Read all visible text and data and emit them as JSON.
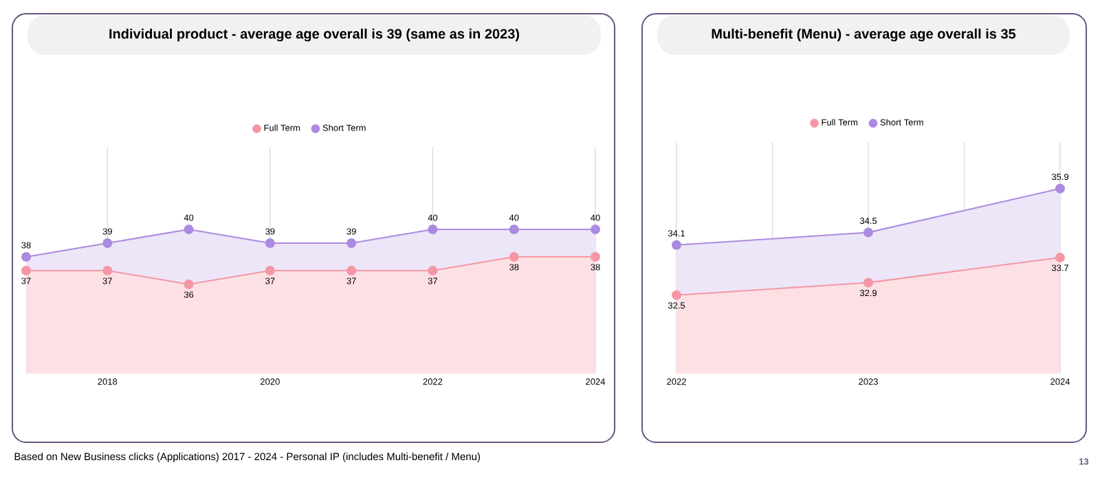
{
  "chart_data": [
    {
      "type": "area",
      "title": "Individual product - average age overall is 39 (same as in 2023)",
      "x": [
        2017,
        2018,
        2019,
        2020,
        2021,
        2022,
        2023,
        2024
      ],
      "series": [
        {
          "name": "Full Term",
          "color": "#f497a4",
          "values": [
            37,
            37,
            36,
            37,
            37,
            37,
            38,
            38
          ]
        },
        {
          "name": "Short Term",
          "color": "#ab8ae0",
          "values": [
            38,
            39,
            40,
            39,
            39,
            40,
            40,
            40
          ]
        }
      ],
      "xlim": [
        2017,
        2024
      ],
      "xticks": [
        2018,
        2020,
        2022,
        2024
      ],
      "ylim": [
        29.5,
        46
      ],
      "tick_labels": "x",
      "grid": "x",
      "legend": "top",
      "marker": "circle",
      "line_style": "solid",
      "data_labels": true,
      "annotations": [
        "Based on New Business clicks (Applications) 2017 - 2024 - Personal IP (includes Multi-benefit / Menu)"
      ]
    },
    {
      "type": "area",
      "title": "Multi-benefit (Menu) - average age overall is 35",
      "x": [
        2022,
        2023,
        2024
      ],
      "series": [
        {
          "name": "Full Term",
          "color": "#f497a4",
          "values": [
            32.5,
            32.9,
            33.7
          ]
        },
        {
          "name": "Short Term",
          "color": "#ab8ae0",
          "values": [
            34.1,
            34.5,
            35.9
          ]
        }
      ],
      "xlim": [
        2022,
        2024
      ],
      "xticks": [
        2022,
        {
          "value": 2022.5,
          "label": null
        },
        2023,
        {
          "value": 2023.5,
          "label": null
        },
        2024
      ],
      "ylim": [
        30,
        37.4
      ],
      "tick_labels": "x",
      "grid": "x",
      "legend": "top",
      "marker": "circle",
      "line_style": "solid",
      "data_labels": true,
      "annotations": [
        "13"
      ]
    }
  ]
}
